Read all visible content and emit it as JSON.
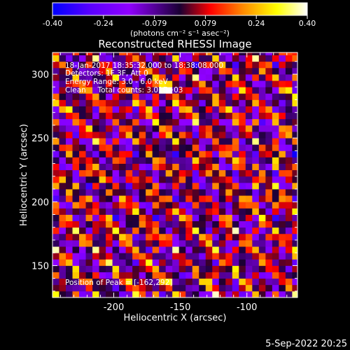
{
  "chart_data": {
    "type": "heatmap",
    "title": "Reconstructed RHESSI Image",
    "colorbar": {
      "min": -0.4,
      "max": 0.4,
      "ticks": [
        "-0.40",
        "-0.24",
        "-0.079",
        "0.079",
        "0.24",
        "0.40"
      ],
      "label": "(photons cm⁻² s⁻¹ asec⁻²)",
      "colormap": [
        "#0000ff",
        "#5a00ff",
        "#9000ff",
        "#1a0033",
        "#ff0000",
        "#ff8c00",
        "#ffff00",
        "#ffffff"
      ]
    },
    "xlabel": "Heliocentric X (arcsec)",
    "ylabel": "Heliocentric Y (arcsec)",
    "xlim": [
      -246,
      -62
    ],
    "ylim": [
      125,
      317
    ],
    "xticks": [
      "-200",
      "-150",
      "-100"
    ],
    "xtick_values": [
      -200,
      -150,
      -100
    ],
    "yticks": [
      "150",
      "200",
      "250",
      "300"
    ],
    "ytick_values": [
      150,
      200,
      250,
      300
    ],
    "annotations": [
      "18-Jan-2017 18:35:32.000 to 18:38:08.000",
      "Detectors: 1F 3F, Att 0",
      "Energy Range: 3.0 - 6.0 keV",
      "Clean     Total counts: 3.01E+03",
      "Position of Peak = [-162,292]"
    ],
    "peak": {
      "x": -162,
      "y": 292
    }
  },
  "footer": {
    "timestamp": "5-Sep-2022 20:25"
  },
  "colors": {
    "background": "#000000",
    "text": "#ffffff"
  }
}
